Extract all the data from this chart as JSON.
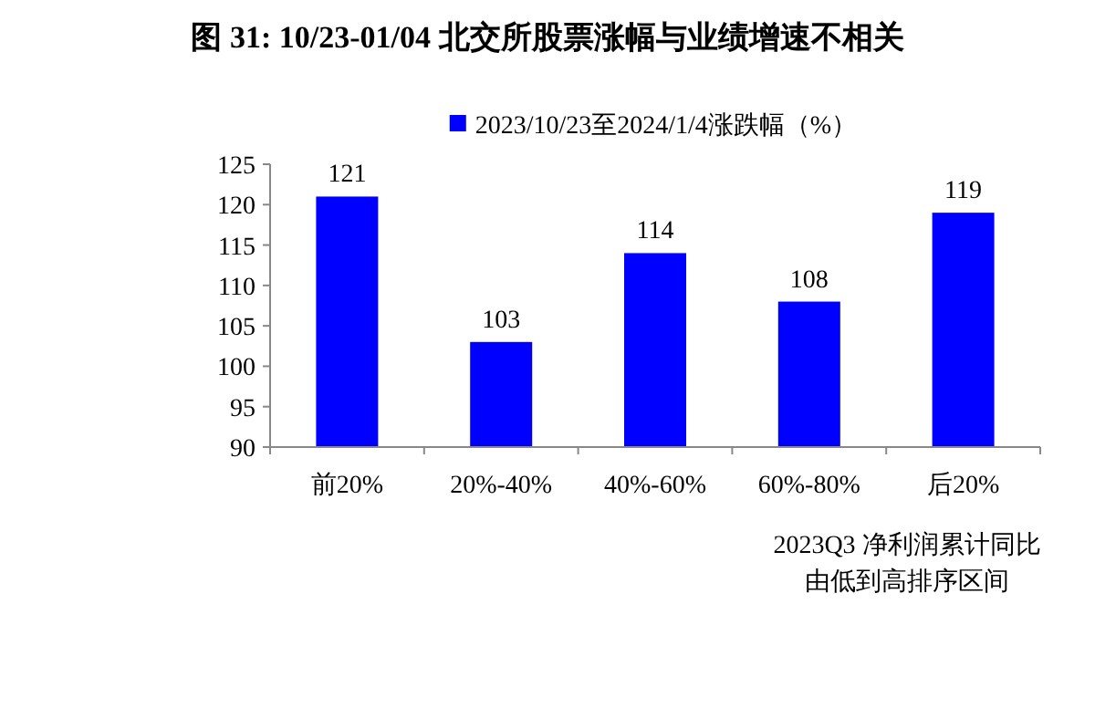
{
  "chart_data": {
    "type": "bar",
    "title": "图 31: 10/23-01/04 北交所股票涨幅与业绩增速不相关",
    "categories": [
      "前20%",
      "20%-40%",
      "40%-60%",
      "60%-80%",
      "后20%"
    ],
    "series": [
      {
        "name": "2023/10/23至2024/1/4涨跌幅（%）",
        "color": "#0000ff",
        "values": [
          121,
          103,
          114,
          108,
          119
        ]
      }
    ],
    "xlabel": "2023Q3 净利润累计同比由低到高排序区间",
    "ylim": [
      90,
      125
    ],
    "yticks": [
      90,
      95,
      100,
      105,
      110,
      115,
      120,
      125
    ],
    "data_labels": true,
    "legend": "top",
    "grid": false
  }
}
